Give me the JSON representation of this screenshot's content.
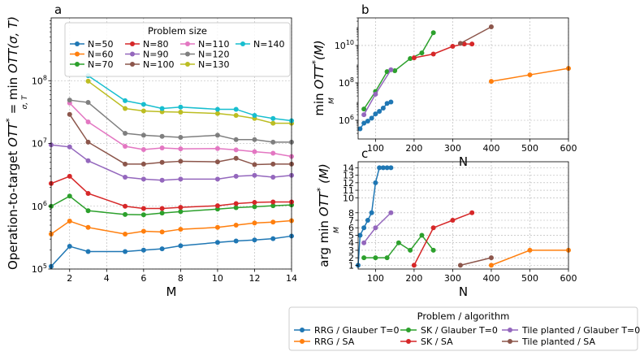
{
  "chart_data": [
    {
      "panel": "a",
      "type": "line",
      "xlabel": "M",
      "ylabel": "Operation-to-target  OTT* = min_{σ,T} OTT(σ,T)",
      "ylabel_parts": {
        "main": "Operation-to-target  ",
        "ott": "OTT",
        "star": "*",
        "eq": " = min ",
        "arg": "OTT(σ, T)",
        "sub": "σ, T"
      },
      "xlim": [
        1,
        14
      ],
      "ylim": [
        100000,
        1000000000
      ],
      "yscale": "log",
      "xticks": [
        2,
        4,
        6,
        8,
        10,
        12,
        14
      ],
      "yticks": [
        {
          "v": 100000,
          "b": "10",
          "e": "5"
        },
        {
          "v": 1000000,
          "b": "10",
          "e": "6"
        },
        {
          "v": 10000000,
          "b": "10",
          "e": "7"
        },
        {
          "v": 100000000,
          "b": "10",
          "e": "8"
        }
      ],
      "legend": {
        "title": "Problem size",
        "placement": "top-center",
        "columns": 4
      },
      "series": [
        {
          "name": "N=50",
          "color": "#1f77b4",
          "x": [
            1,
            2,
            3,
            5,
            6,
            7,
            8,
            10,
            11,
            12,
            13,
            14
          ],
          "y": [
            110000,
            230000,
            190000,
            190000,
            200000,
            210000,
            235000,
            265000,
            280000,
            290000,
            305000,
            335000
          ]
        },
        {
          "name": "N=60",
          "color": "#ff7f0e",
          "x": [
            1,
            2,
            3,
            5,
            6,
            7,
            8,
            10,
            11,
            12,
            13,
            14
          ],
          "y": [
            360000,
            580000,
            460000,
            360000,
            400000,
            390000,
            430000,
            460000,
            500000,
            540000,
            560000,
            590000
          ]
        },
        {
          "name": "N=70",
          "color": "#2ca02c",
          "x": [
            1,
            2,
            3,
            5,
            6,
            7,
            8,
            10,
            11,
            12,
            13,
            14
          ],
          "y": [
            1000000,
            1450000,
            850000,
            740000,
            730000,
            780000,
            820000,
            900000,
            950000,
            980000,
            1020000,
            1050000
          ]
        },
        {
          "name": "N=80",
          "color": "#d62728",
          "x": [
            1,
            2,
            3,
            5,
            6,
            7,
            8,
            10,
            11,
            12,
            13,
            14
          ],
          "y": [
            2300000,
            3000000,
            1600000,
            1000000,
            920000,
            920000,
            960000,
            1020000,
            1100000,
            1150000,
            1170000,
            1170000
          ]
        },
        {
          "name": "N=90",
          "color": "#9467bd",
          "x": [
            1,
            2,
            3,
            5,
            6,
            7,
            8,
            10,
            11,
            12,
            13,
            14
          ],
          "y": [
            9500000,
            8800000,
            5300000,
            2900000,
            2700000,
            2600000,
            2700000,
            2700000,
            3000000,
            3100000,
            2900000,
            3100000
          ]
        },
        {
          "name": "N=100",
          "color": "#8c564b",
          "x": [
            2,
            3,
            5,
            6,
            7,
            8,
            10,
            11,
            12,
            13,
            14
          ],
          "y": [
            29000000,
            10500000,
            4700000,
            4700000,
            5000000,
            5200000,
            5100000,
            5800000,
            4600000,
            4700000,
            4700000
          ]
        },
        {
          "name": "N=110",
          "color": "#e377c2",
          "x": [
            2,
            3,
            5,
            6,
            7,
            8,
            10,
            11,
            12,
            13,
            14
          ],
          "y": [
            44000000,
            22000000,
            9000000,
            8000000,
            8500000,
            8200000,
            8300000,
            7900000,
            7400000,
            7000000,
            6200000
          ]
        },
        {
          "name": "N=120",
          "color": "#7f7f7f",
          "x": [
            2,
            3,
            5,
            6,
            7,
            8,
            10,
            11,
            12,
            13,
            14
          ],
          "y": [
            49000000,
            45000000,
            14500000,
            13500000,
            13000000,
            12500000,
            13500000,
            11500000,
            11500000,
            10500000,
            10500000
          ]
        },
        {
          "name": "N=130",
          "color": "#bcbd22",
          "x": [
            3,
            5,
            6,
            7,
            8,
            10,
            11,
            12,
            13,
            14
          ],
          "y": [
            98000000,
            36000000,
            33000000,
            32000000,
            31500000,
            30000000,
            28000000,
            25000000,
            21000000,
            21000000
          ]
        },
        {
          "name": "N=140",
          "color": "#17becf",
          "x": [
            3,
            5,
            6,
            7,
            8,
            10,
            11,
            12,
            13,
            14
          ],
          "y": [
            120000000,
            48000000,
            42000000,
            36000000,
            38000000,
            35000000,
            35000000,
            28000000,
            25000000,
            23000000
          ]
        }
      ]
    },
    {
      "panel": "b",
      "type": "line",
      "xlabel": "N",
      "ylabel": "min_M OTT*(M)",
      "ylabel_parts": {
        "min": "min",
        "sub": "M",
        "ott": "OTT",
        "star": "*",
        "arg": "(M)"
      },
      "xlim": [
        55,
        600
      ],
      "ylim": [
        100000,
        300000000000
      ],
      "yscale": "log",
      "xticks": [
        100,
        200,
        300,
        400,
        500,
        600
      ],
      "yticks": [
        {
          "v": 1000000,
          "b": "10",
          "e": "6"
        },
        {
          "v": 100000000,
          "b": "10",
          "e": "8"
        },
        {
          "v": 10000000000,
          "b": "10",
          "e": "10"
        }
      ],
      "series": [
        {
          "name": "RRG / Glauber T=0",
          "color": "#1f77b4",
          "x": [
            60,
            70,
            80,
            90,
            100,
            110,
            120,
            130,
            140
          ],
          "y": [
            350000,
            700000,
            900000,
            1300000,
            2200000,
            3000000,
            4500000,
            8000000,
            9500000
          ]
        },
        {
          "name": "RRG / SA",
          "color": "#ff7f0e",
          "x": [
            400,
            500,
            600
          ],
          "y": [
            120000000,
            270000000,
            600000000
          ]
        },
        {
          "name": "SK / Glauber T=0",
          "color": "#2ca02c",
          "x": [
            70,
            100,
            130,
            150,
            190,
            220,
            250
          ],
          "y": [
            4000000,
            35000000,
            400000000,
            450000000,
            2000000000,
            4000000000,
            48000000000
          ]
        },
        {
          "name": "SK / SA",
          "color": "#d62728",
          "x": [
            200,
            250,
            300,
            330,
            350
          ],
          "y": [
            2200000000,
            3500000000,
            9000000000,
            12000000000,
            12000000000
          ]
        },
        {
          "name": "Tile planted / Glauber T=0",
          "color": "#9467bd",
          "x": [
            70,
            100,
            140
          ],
          "y": [
            2000000,
            25000000,
            500000000
          ]
        },
        {
          "name": "Tile planted / SA",
          "color": "#8c564b",
          "x": [
            320,
            400
          ],
          "y": [
            13000000000,
            100000000000
          ]
        }
      ]
    },
    {
      "panel": "c",
      "type": "line",
      "xlabel": "N",
      "ylabel": "arg min_M OTT*(M)",
      "ylabel_parts": {
        "argmin": "arg min",
        "sub": "M",
        "ott": "OTT",
        "star": "*",
        "arg": "(M)"
      },
      "xlim": [
        55,
        600
      ],
      "ylim": [
        0.5,
        14.8
      ],
      "xticks": [
        100,
        200,
        300,
        400,
        500,
        600
      ],
      "yticks": [
        1,
        2,
        3,
        4,
        5,
        6,
        7,
        8,
        10,
        11,
        12,
        13,
        14
      ],
      "legend": {
        "title": "Problem / algorithm",
        "placement": "below",
        "columns": 3
      },
      "series": [
        {
          "name": "RRG / Glauber T=0",
          "color": "#1f77b4",
          "x": [
            55,
            60,
            70,
            80,
            90,
            100,
            110,
            120,
            130,
            140
          ],
          "y": [
            1,
            5,
            6,
            7,
            8,
            12,
            14,
            14,
            14,
            14
          ]
        },
        {
          "name": "RRG / SA",
          "color": "#ff7f0e",
          "x": [
            400,
            500,
            600
          ],
          "y": [
            1,
            3,
            3
          ]
        },
        {
          "name": "SK / Glauber T=0",
          "color": "#2ca02c",
          "x": [
            70,
            100,
            130,
            160,
            190,
            220,
            250
          ],
          "y": [
            2,
            2,
            2,
            4,
            3,
            5,
            3
          ]
        },
        {
          "name": "SK / SA",
          "color": "#d62728",
          "x": [
            200,
            250,
            300,
            350
          ],
          "y": [
            1,
            6,
            7,
            8
          ]
        },
        {
          "name": "Tile planted / Glauber T=0",
          "color": "#9467bd",
          "x": [
            70,
            100,
            140
          ],
          "y": [
            4,
            6,
            8
          ]
        },
        {
          "name": "Tile planted / SA",
          "color": "#8c564b",
          "x": [
            320,
            400
          ],
          "y": [
            1,
            2
          ]
        }
      ]
    }
  ]
}
